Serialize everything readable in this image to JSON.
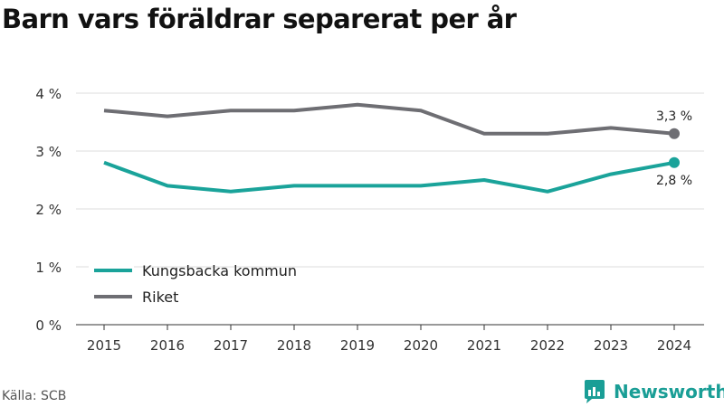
{
  "title": "Barn vars föräldrar separerat per år",
  "source": "Källa: SCB",
  "brand": {
    "name": "Newsworthy",
    "icon": "newsworthy-logo-icon"
  },
  "colors": {
    "kungsbacka": "#1aa39a",
    "riket": "#6e6e73",
    "grid": "#dddddd",
    "brand": "#1a9e96"
  },
  "chart_data": {
    "type": "line",
    "x": [
      "2015",
      "2016",
      "2017",
      "2018",
      "2019",
      "2020",
      "2021",
      "2022",
      "2023",
      "2024"
    ],
    "yticks": [
      "0 %",
      "1 %",
      "2 %",
      "3 %",
      "4 %"
    ],
    "ylim": [
      0,
      4
    ],
    "grid": true,
    "legend_position": "bottom-left",
    "series": [
      {
        "name": "Kungsbacka kommun",
        "color": "#1aa39a",
        "values": [
          2.8,
          2.4,
          2.3,
          2.4,
          2.4,
          2.4,
          2.5,
          2.3,
          2.6,
          2.8
        ],
        "end_label": "2,8 %"
      },
      {
        "name": "Riket",
        "color": "#6e6e73",
        "values": [
          3.7,
          3.6,
          3.7,
          3.7,
          3.8,
          3.7,
          3.3,
          3.3,
          3.4,
          3.3
        ],
        "end_label": "3,3 %"
      }
    ]
  }
}
